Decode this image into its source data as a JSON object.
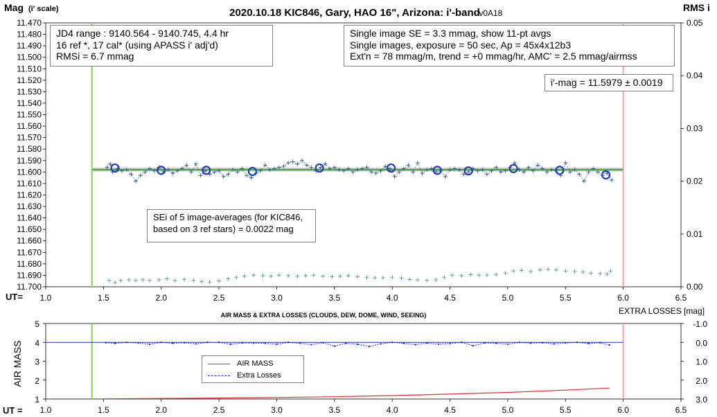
{
  "title": "2020.10.18 KIC846, Gary, HAO 16\", Arizona: i'-band",
  "version": "- v0A18",
  "top_chart": {
    "y_label": "Mag",
    "y_label_sub": "(i' scale)",
    "right_label": "RMS i",
    "x_prefix": "UT=",
    "y_ticks": [
      "11.470",
      "11.480",
      "11.490",
      "11.500",
      "11.510",
      "11.520",
      "11.530",
      "11.540",
      "11.550",
      "11.560",
      "11.570",
      "11.580",
      "11.590",
      "11.600",
      "11.610",
      "11.620",
      "11.630",
      "11.640",
      "11.650",
      "11.660",
      "11.670",
      "11.680",
      "11.690",
      "11.700"
    ],
    "right_ticks": [
      "0.05",
      "0.04",
      "0.03",
      "0.02",
      "0.01",
      "0.00"
    ],
    "x_ticks": [
      "1.0",
      "1.5",
      "2.0",
      "2.5",
      "3.0",
      "3.5",
      "4.0",
      "4.5",
      "5.0",
      "5.5",
      "6.0",
      "6.5"
    ],
    "box1": [
      "JD4 range : 9140.564 - 9140.745, 4.4  hr",
      "16 ref *, 17 cal* (using APASS i' adj'd)",
      "RMSi = 6.7 mmag"
    ],
    "box2": [
      "Single image SE = 3.3 mmag, show 11-pt avgs",
      "Single images, exposure = 50 sec, Ap = 45x4x12b3",
      "Ext'n = 78 mmag/m, trend = +0 mmag/hr, AMC' = 2.5 mmag/airmss"
    ],
    "box3": "i'-mag = 11.5979 ± 0.0019",
    "box4": [
      "SEi of 5 image-averages (for KIC846,",
      "based on 3 ref stars) = 0.0022 mag"
    ]
  },
  "bottom_chart": {
    "title": "AIR MASS & EXTRA LOSSES (CLOUDS, DEW, DOME, WIND, SEEING)",
    "y_label": "AIR MASS",
    "right_label": "EXTRA LOSSES [mag]",
    "x_prefix": "UT =",
    "y_ticks": [
      "5",
      "4",
      "3",
      "2",
      "1"
    ],
    "right_ticks": [
      "-1.0",
      "0.0",
      "1.0",
      "2.0",
      "3.0"
    ],
    "x_ticks": [
      "1.0",
      "1.5",
      "2.0",
      "2.5",
      "3.0",
      "3.5",
      "4.0",
      "4.5",
      "5.0",
      "5.5",
      "6.0",
      "6.5"
    ],
    "legend": [
      "AIR MASS",
      "Extra Losses"
    ]
  },
  "chart_data": [
    {
      "type": "scatter",
      "title": "2020.10.18 KIC846, Gary, HAO 16\", Arizona: i'-band",
      "xlabel": "UT=",
      "ylabel": "Mag (i' scale)",
      "y2label": "RMS i",
      "xlim": [
        1.0,
        6.5
      ],
      "ylim": [
        11.7,
        11.47
      ],
      "y2lim": [
        0.0,
        0.05
      ],
      "grid": false,
      "colors": {
        "points": "#2e5a9c",
        "avg_markers": "#1f3fae",
        "mean_line": "#bfbfbf",
        "fit_line": "#4caf3a",
        "rms": "#4f95a6",
        "left_vline": "#8fd14f",
        "right_vline": "#f4a6a6"
      },
      "vertical_lines": [
        1.4,
        6.0
      ],
      "mean_mag": 11.5979,
      "series": [
        {
          "x": [
            1.53,
            1.56,
            1.58,
            1.62,
            1.66,
            1.7,
            1.74,
            1.78,
            1.82,
            1.86,
            1.9,
            1.94,
            1.98,
            2.02,
            2.06,
            2.1,
            2.14,
            2.18,
            2.22,
            2.26,
            2.3,
            2.34,
            2.38,
            2.42,
            2.46,
            2.5,
            2.54,
            2.58,
            2.62,
            2.66,
            2.7,
            2.74,
            2.78,
            2.82,
            2.86,
            2.9,
            2.94,
            2.98,
            3.02,
            3.06,
            3.1,
            3.14,
            3.18,
            3.22,
            3.26,
            3.3,
            3.34,
            3.38,
            3.42,
            3.46,
            3.5,
            3.54,
            3.58,
            3.62,
            3.66,
            3.7,
            3.74,
            3.78,
            3.82,
            3.86,
            3.9,
            3.94,
            3.98,
            4.02,
            4.06,
            4.1,
            4.14,
            4.18,
            4.22,
            4.26,
            4.3,
            4.34,
            4.38,
            4.42,
            4.46,
            4.5,
            4.54,
            4.58,
            4.62,
            4.66,
            4.7,
            4.74,
            4.78,
            4.82,
            4.86,
            4.9,
            4.94,
            4.98,
            5.02,
            5.06,
            5.1,
            5.14,
            5.18,
            5.22,
            5.26,
            5.3,
            5.34,
            5.38,
            5.42,
            5.46,
            5.5,
            5.54,
            5.58,
            5.62,
            5.66,
            5.7,
            5.74,
            5.78,
            5.82,
            5.86,
            5.9
          ],
          "y": [
            11.596,
            11.593,
            11.6,
            11.597,
            11.599,
            11.598,
            11.602,
            11.608,
            11.603,
            11.6,
            11.597,
            11.599,
            11.596,
            11.6,
            11.598,
            11.601,
            11.599,
            11.597,
            11.594,
            11.6,
            11.593,
            11.603,
            11.599,
            11.602,
            11.6,
            11.599,
            11.604,
            11.602,
            11.598,
            11.6,
            11.597,
            11.603,
            11.605,
            11.601,
            11.599,
            11.594,
            11.598,
            11.597,
            11.596,
            11.595,
            11.592,
            11.591,
            11.593,
            11.59,
            11.594,
            11.596,
            11.599,
            11.596,
            11.593,
            11.597,
            11.596,
            11.598,
            11.599,
            11.597,
            11.6,
            11.598,
            11.597,
            11.596,
            11.6,
            11.601,
            11.599,
            11.595,
            11.597,
            11.604,
            11.6,
            11.597,
            11.594,
            11.6,
            11.592,
            11.601,
            11.598,
            11.597,
            11.6,
            11.599,
            11.604,
            11.598,
            11.597,
            11.598,
            11.602,
            11.6,
            11.597,
            11.599,
            11.598,
            11.602,
            11.599,
            11.596,
            11.6,
            11.599,
            11.596,
            11.592,
            11.598,
            11.6,
            11.596,
            11.599,
            11.594,
            11.597,
            11.6,
            11.598,
            11.599,
            11.603,
            11.592,
            11.6,
            11.598,
            11.602,
            11.608,
            11.6,
            11.597,
            11.6,
            11.603,
            11.601,
            11.607
          ]
        },
        {
          "name": "11-pt avgs",
          "x": [
            1.6,
            2.0,
            2.39,
            2.79,
            3.37,
            3.99,
            4.39,
            4.66,
            5.05,
            5.45,
            5.85
          ],
          "y": [
            11.5965,
            11.5985,
            11.5985,
            11.5995,
            11.5965,
            11.5965,
            11.5985,
            11.599,
            11.597,
            11.5985,
            11.6025
          ]
        },
        {
          "name": "trend",
          "x": [
            1.4,
            6.0
          ],
          "y": [
            11.598,
            11.598
          ]
        },
        {
          "name": "RMS i",
          "axis": "right",
          "x": [
            1.55,
            1.6,
            1.65,
            1.72,
            1.78,
            1.84,
            1.9,
            1.98,
            2.05,
            2.12,
            2.2,
            2.28,
            2.35,
            2.42,
            2.5,
            2.58,
            2.65,
            2.72,
            2.8,
            2.88,
            2.95,
            3.02,
            3.1,
            3.18,
            3.25,
            3.32,
            3.4,
            3.48,
            3.55,
            3.62,
            3.7,
            3.78,
            3.85,
            3.92,
            4.0,
            4.08,
            4.15,
            4.22,
            4.3,
            4.38,
            4.45,
            4.52,
            4.6,
            4.68,
            4.75,
            4.82,
            4.9,
            4.98,
            5.05,
            5.12,
            5.2,
            5.28,
            5.35,
            5.42,
            5.5,
            5.58,
            5.65,
            5.72,
            5.8,
            5.86,
            5.89
          ],
          "y": [
            0.0012,
            0.0008,
            0.0012,
            0.0013,
            0.0012,
            0.0013,
            0.0012,
            0.0013,
            0.0015,
            0.0012,
            0.0014,
            0.0012,
            0.001,
            0.0009,
            0.0011,
            0.0015,
            0.0018,
            0.002,
            0.0022,
            0.0021,
            0.002,
            0.0022,
            0.0021,
            0.002,
            0.0021,
            0.0022,
            0.002,
            0.0019,
            0.002,
            0.0021,
            0.0019,
            0.0018,
            0.0017,
            0.0017,
            0.0018,
            0.0016,
            0.0014,
            0.0013,
            0.0012,
            0.0013,
            0.0018,
            0.0022,
            0.0021,
            0.0023,
            0.0022,
            0.0022,
            0.0023,
            0.0026,
            0.003,
            0.0031,
            0.0029,
            0.0032,
            0.0033,
            0.0032,
            0.003,
            0.0029,
            0.0028,
            0.0026,
            0.0025,
            0.0024,
            0.003
          ]
        }
      ]
    },
    {
      "type": "line",
      "title": "AIR MASS & EXTRA LOSSES (CLOUDS, DEW, DOME, WIND, SEEING)",
      "xlabel": "UT =",
      "ylabel": "AIR MASS",
      "y2label": "EXTRA LOSSES [mag]",
      "xlim": [
        1.0,
        6.5
      ],
      "ylim": [
        1,
        5
      ],
      "y2lim": [
        3.0,
        -1.0
      ],
      "grid": false,
      "legend_position": "center-left",
      "vertical_lines": [
        1.4,
        6.0
      ],
      "series": [
        {
          "name": "AIR MASS",
          "color": "#d9302c",
          "x": [
            1.52,
            2.0,
            2.5,
            3.0,
            3.5,
            4.0,
            4.5,
            5.0,
            5.5,
            5.88
          ],
          "y": [
            1.01,
            1.03,
            1.05,
            1.08,
            1.12,
            1.18,
            1.26,
            1.35,
            1.47,
            1.58
          ]
        },
        {
          "name": "Extra Losses",
          "color": "#1f2fbd",
          "axis": "right",
          "x": [
            1.52,
            1.6,
            1.7,
            1.8,
            1.9,
            2.0,
            2.1,
            2.2,
            2.3,
            2.4,
            2.5,
            2.6,
            2.7,
            2.8,
            2.9,
            3.0,
            3.1,
            3.2,
            3.3,
            3.4,
            3.5,
            3.6,
            3.7,
            3.8,
            3.9,
            4.0,
            4.1,
            4.2,
            4.3,
            4.4,
            4.5,
            4.6,
            4.7,
            4.8,
            4.9,
            5.0,
            5.1,
            5.2,
            5.3,
            5.4,
            5.5,
            5.6,
            5.7,
            5.8,
            5.88
          ],
          "y": [
            0.02,
            0.05,
            0.0,
            0.03,
            0.1,
            0.0,
            0.05,
            0.02,
            0.08,
            0.0,
            0.0,
            0.1,
            0.03,
            0.04,
            0.05,
            0.1,
            0.0,
            0.05,
            0.12,
            0.02,
            0.2,
            0.05,
            0.1,
            0.22,
            0.08,
            0.0,
            0.05,
            0.12,
            0.04,
            0.1,
            0.06,
            0.0,
            0.18,
            0.03,
            0.05,
            0.1,
            0.0,
            0.04,
            0.02,
            0.08,
            0.03,
            0.0,
            0.06,
            0.02,
            0.14
          ]
        }
      ]
    }
  ]
}
